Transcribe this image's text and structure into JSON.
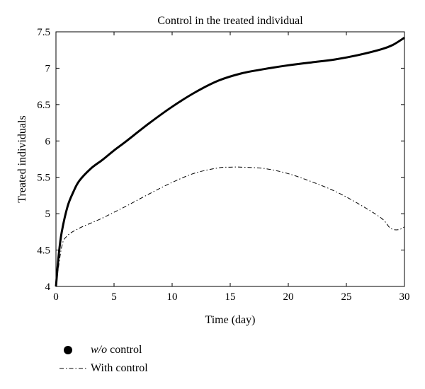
{
  "chart_data": {
    "type": "line",
    "title": "Control in the treated individual",
    "xlabel": "Time (day)",
    "ylabel": "Treated individuals",
    "xlim": [
      0,
      30
    ],
    "ylim": [
      4,
      7.5
    ],
    "xticks": [
      0,
      5,
      10,
      15,
      20,
      25,
      30
    ],
    "yticks": [
      4,
      4.5,
      5,
      5.5,
      6,
      6.5,
      7,
      7.5
    ],
    "xtick_labels": [
      "0",
      "5",
      "10",
      "15",
      "20",
      "25",
      "30"
    ],
    "ytick_labels": [
      "4",
      "4.5",
      "5",
      "5.5",
      "6",
      "6.5",
      "7",
      "7.5"
    ],
    "grid": false,
    "legend_position": "bottom-left, outside plot",
    "series": [
      {
        "name": "w/o control",
        "style": "solid-thick",
        "color": "#000000",
        "x": [
          0,
          0.25,
          0.5,
          1,
          1.5,
          2,
          3,
          4,
          5,
          6,
          8,
          10,
          12,
          14,
          16,
          18,
          20,
          22,
          24,
          26,
          28,
          29,
          30
        ],
        "y": [
          4.0,
          4.45,
          4.75,
          5.1,
          5.3,
          5.45,
          5.62,
          5.74,
          5.87,
          5.99,
          6.24,
          6.47,
          6.67,
          6.83,
          6.93,
          6.99,
          7.04,
          7.08,
          7.12,
          7.18,
          7.26,
          7.32,
          7.42
        ]
      },
      {
        "name": "With control",
        "style": "dash-dot",
        "color": "#000000",
        "x": [
          0,
          0.5,
          1,
          2,
          3,
          4,
          5,
          6,
          8,
          10,
          12,
          14,
          15,
          16,
          18,
          20,
          22,
          24,
          26,
          28,
          28.8,
          29.5,
          30
        ],
        "y": [
          4.0,
          4.55,
          4.7,
          4.8,
          4.87,
          4.94,
          5.02,
          5.1,
          5.27,
          5.43,
          5.56,
          5.63,
          5.64,
          5.64,
          5.62,
          5.55,
          5.44,
          5.31,
          5.14,
          4.94,
          4.8,
          4.78,
          4.82
        ]
      }
    ]
  },
  "legend": {
    "items": [
      {
        "prefix": "w/o",
        "text": " control"
      },
      {
        "text": "With control"
      }
    ]
  }
}
